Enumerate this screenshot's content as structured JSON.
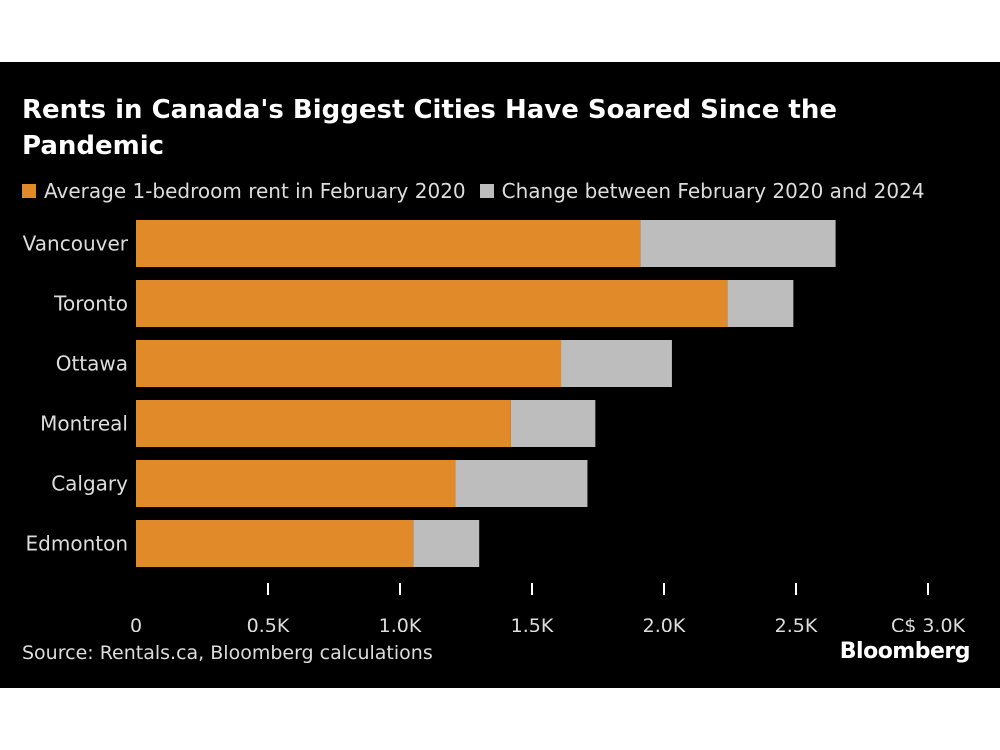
{
  "header": {
    "title": "Rents in Canada's Biggest Cities Have Soared Since the Pandemic"
  },
  "legend": {
    "items": [
      {
        "label": "Average 1-bedroom rent in February 2020",
        "color": "#e08a2a"
      },
      {
        "label": "Change between February 2020 and 2024",
        "color": "#bdbdbd"
      }
    ]
  },
  "chart_data": {
    "type": "bar",
    "orientation": "horizontal",
    "stacked": true,
    "categories": [
      "Vancouver",
      "Toronto",
      "Ottawa",
      "Montreal",
      "Calgary",
      "Edmonton"
    ],
    "series": [
      {
        "name": "Average 1-bedroom rent in February 2020",
        "color": "#e08a2a",
        "values": [
          1910,
          2240,
          1610,
          1420,
          1210,
          1050
        ]
      },
      {
        "name": "Change between February 2020 and 2024",
        "color": "#bdbdbd",
        "values": [
          740,
          250,
          420,
          320,
          500,
          250
        ]
      }
    ],
    "xlim": [
      0,
      3000
    ],
    "xticks": [
      0,
      500,
      1000,
      1500,
      2000,
      2500,
      3000
    ],
    "xtick_labels": [
      "0",
      "0.5K",
      "1.0K",
      "1.5K",
      "2.0K",
      "2.5K",
      "C$ 3.0K"
    ],
    "grid": false,
    "legend_position": "top-left"
  },
  "footer": {
    "source": "Source: Rentals.ca, Bloomberg calculations",
    "brand": "Bloomberg"
  }
}
